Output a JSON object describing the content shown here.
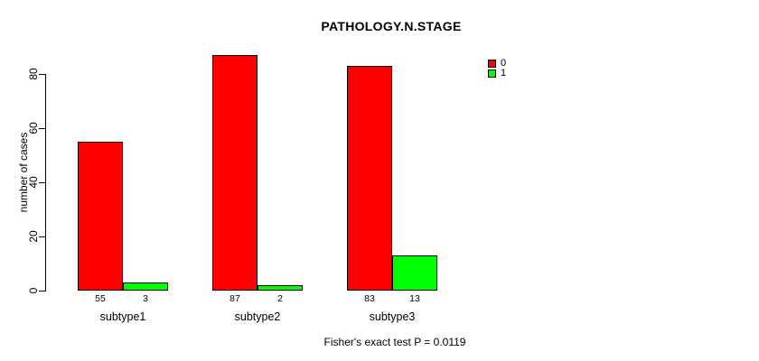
{
  "chart_data": {
    "type": "bar",
    "title": "PATHOLOGY.N.STAGE",
    "ylabel": "number of cases",
    "xlabel": "",
    "categories": [
      "subtype1",
      "subtype2",
      "subtype3"
    ],
    "series": [
      {
        "name": "0",
        "color": "#FF0000",
        "values": [
          55,
          87,
          83
        ]
      },
      {
        "name": "1",
        "color": "#00FF00",
        "values": [
          3,
          2,
          13
        ]
      }
    ],
    "yticks": [
      0,
      20,
      40,
      60,
      80
    ],
    "ylim": [
      0,
      87
    ],
    "grid": false,
    "bar_labels": true,
    "legend_position": "top-right",
    "footer": "Fisher's exact test P = 0.0119"
  },
  "colors": {
    "axis": "#000000",
    "text": "#000000",
    "background": "#FFFFFF"
  }
}
